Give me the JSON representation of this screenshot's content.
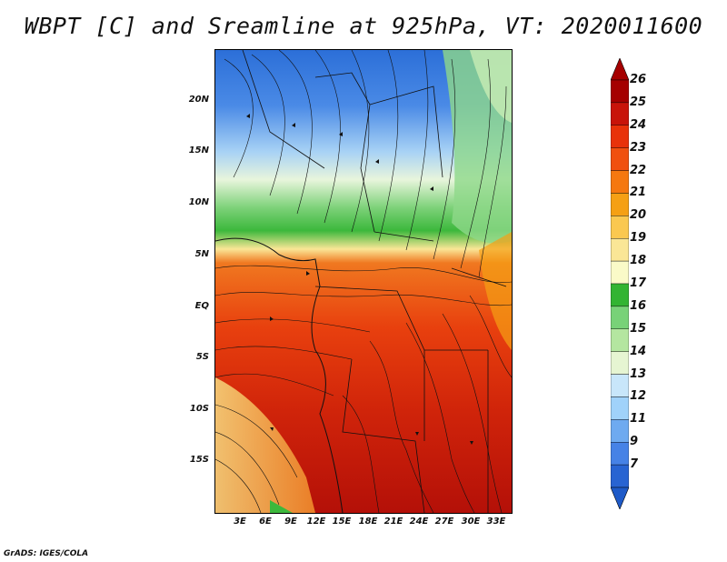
{
  "title": "WBPT [C] and Sreamline at 925hPa, VT: 2020011600",
  "y_axis_labels": [
    "20N",
    "15N",
    "10N",
    "5N",
    "EQ",
    "5S",
    "10S",
    "15S"
  ],
  "x_axis_labels": [
    "3E",
    "6E",
    "9E",
    "12E",
    "15E",
    "18E",
    "21E",
    "24E",
    "27E",
    "30E",
    "33E"
  ],
  "colorbar": {
    "labels": [
      "26",
      "25",
      "24",
      "23",
      "22",
      "21",
      "20",
      "19",
      "18",
      "17",
      "16",
      "15",
      "14",
      "13",
      "12",
      "11",
      "9",
      "7"
    ],
    "colors": [
      "#a50000",
      "#c8140a",
      "#e8320a",
      "#f0500f",
      "#f5780f",
      "#f5a014",
      "#fac850",
      "#fae696",
      "#fafac8",
      "#32b432",
      "#78d278",
      "#b4e6a0",
      "#e6f5d2",
      "#c8e6fa",
      "#a0d2fa",
      "#6eaaf0",
      "#4682e6",
      "#2864d2"
    ],
    "top_arrow_color": "#a50000",
    "bottom_arrow_color": "#1e5ac8"
  },
  "credit": "GrADS: IGES/COLA"
}
